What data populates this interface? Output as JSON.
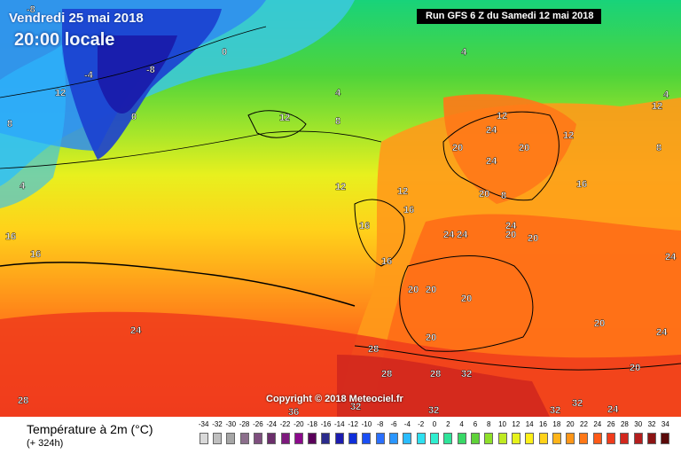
{
  "header": {
    "date": "Vendredi 25 mai 2018",
    "time": "20:00 locale",
    "run": "Run GFS 6 Z du Samedi 12 mai 2018"
  },
  "copyright": "Copyright © 2018 Meteociel.fr",
  "legend": {
    "title": "Température à 2m (°C)",
    "subtitle": "(+ 324h)",
    "ticks": [
      "-34",
      "-32",
      "-30",
      "-28",
      "-26",
      "-24",
      "-22",
      "-20",
      "-18",
      "-16",
      "-14",
      "-12",
      "-10",
      "-8",
      "-6",
      "-4",
      "-2",
      "0",
      "2",
      "4",
      "6",
      "8",
      "10",
      "12",
      "14",
      "16",
      "18",
      "20",
      "22",
      "24",
      "26",
      "28",
      "30",
      "32",
      "34"
    ],
    "colors": [
      "#d9d9d9",
      "#bfbfbf",
      "#a6a6a6",
      "#8c6f8c",
      "#7f4f7f",
      "#6b2f6b",
      "#7d1a7d",
      "#8c0a8c",
      "#5a005a",
      "#2b2b8c",
      "#1c1cb0",
      "#0f2fd9",
      "#1b4ff5",
      "#2b70ff",
      "#2b96ff",
      "#2bbcff",
      "#2fe0f0",
      "#2feecf",
      "#2fe49a",
      "#38d866",
      "#5fd23a",
      "#8fe02a",
      "#bfea22",
      "#e6f21c",
      "#fff01a",
      "#ffd21a",
      "#ffb41a",
      "#ff9618",
      "#ff7818",
      "#ff5a18",
      "#f03c1c",
      "#d2281e",
      "#b41e1e",
      "#8c1414",
      "#5a0a0a"
    ]
  },
  "map_labels": [
    {
      "text": "-8",
      "name": "temp-label"
    },
    {
      "text": "-4",
      "name": "temp-label"
    },
    {
      "text": "-8",
      "name": "temp-label"
    },
    {
      "text": "0",
      "name": "temp-label"
    },
    {
      "text": "0",
      "name": "temp-label"
    },
    {
      "text": "4",
      "name": "temp-label"
    },
    {
      "text": "4",
      "name": "temp-label"
    },
    {
      "text": "4",
      "name": "temp-label"
    },
    {
      "text": "4",
      "name": "temp-label"
    },
    {
      "text": "8",
      "name": "temp-label"
    },
    {
      "text": "8",
      "name": "temp-label"
    },
    {
      "text": "8",
      "name": "temp-label"
    },
    {
      "text": "8",
      "name": "temp-label"
    },
    {
      "text": "12",
      "name": "temp-label"
    },
    {
      "text": "12",
      "name": "temp-label"
    },
    {
      "text": "12",
      "name": "temp-label"
    },
    {
      "text": "12",
      "name": "temp-label"
    },
    {
      "text": "12",
      "name": "temp-label"
    },
    {
      "text": "12",
      "name": "temp-label"
    },
    {
      "text": "12",
      "name": "temp-label"
    },
    {
      "text": "16",
      "name": "temp-label"
    },
    {
      "text": "16",
      "name": "temp-label"
    },
    {
      "text": "16",
      "name": "temp-label"
    },
    {
      "text": "16",
      "name": "temp-label"
    },
    {
      "text": "16",
      "name": "temp-label"
    },
    {
      "text": "16",
      "name": "temp-label"
    },
    {
      "text": "20",
      "name": "temp-label"
    },
    {
      "text": "20",
      "name": "temp-label"
    },
    {
      "text": "20",
      "name": "temp-label"
    },
    {
      "text": "20",
      "name": "temp-label"
    },
    {
      "text": "20",
      "name": "temp-label"
    },
    {
      "text": "20",
      "name": "temp-label"
    },
    {
      "text": "20",
      "name": "temp-label"
    },
    {
      "text": "20",
      "name": "temp-label"
    },
    {
      "text": "20",
      "name": "temp-label"
    },
    {
      "text": "24",
      "name": "temp-label"
    },
    {
      "text": "24",
      "name": "temp-label"
    },
    {
      "text": "24",
      "name": "temp-label"
    },
    {
      "text": "24",
      "name": "temp-label"
    },
    {
      "text": "24",
      "name": "temp-label"
    },
    {
      "text": "24",
      "name": "temp-label"
    },
    {
      "text": "24",
      "name": "temp-label"
    },
    {
      "text": "28",
      "name": "temp-label"
    },
    {
      "text": "28",
      "name": "temp-label"
    },
    {
      "text": "28",
      "name": "temp-label"
    },
    {
      "text": "32",
      "name": "temp-label"
    },
    {
      "text": "32",
      "name": "temp-label"
    },
    {
      "text": "32",
      "name": "temp-label"
    },
    {
      "text": "32",
      "name": "temp-label"
    },
    {
      "text": "36",
      "name": "temp-label"
    },
    {
      "text": "28",
      "name": "temp-label"
    },
    {
      "text": "24",
      "name": "temp-label"
    },
    {
      "text": "20",
      "name": "temp-label"
    },
    {
      "text": "20",
      "name": "temp-label"
    },
    {
      "text": "24",
      "name": "temp-label"
    },
    {
      "text": "32",
      "name": "temp-label"
    }
  ]
}
